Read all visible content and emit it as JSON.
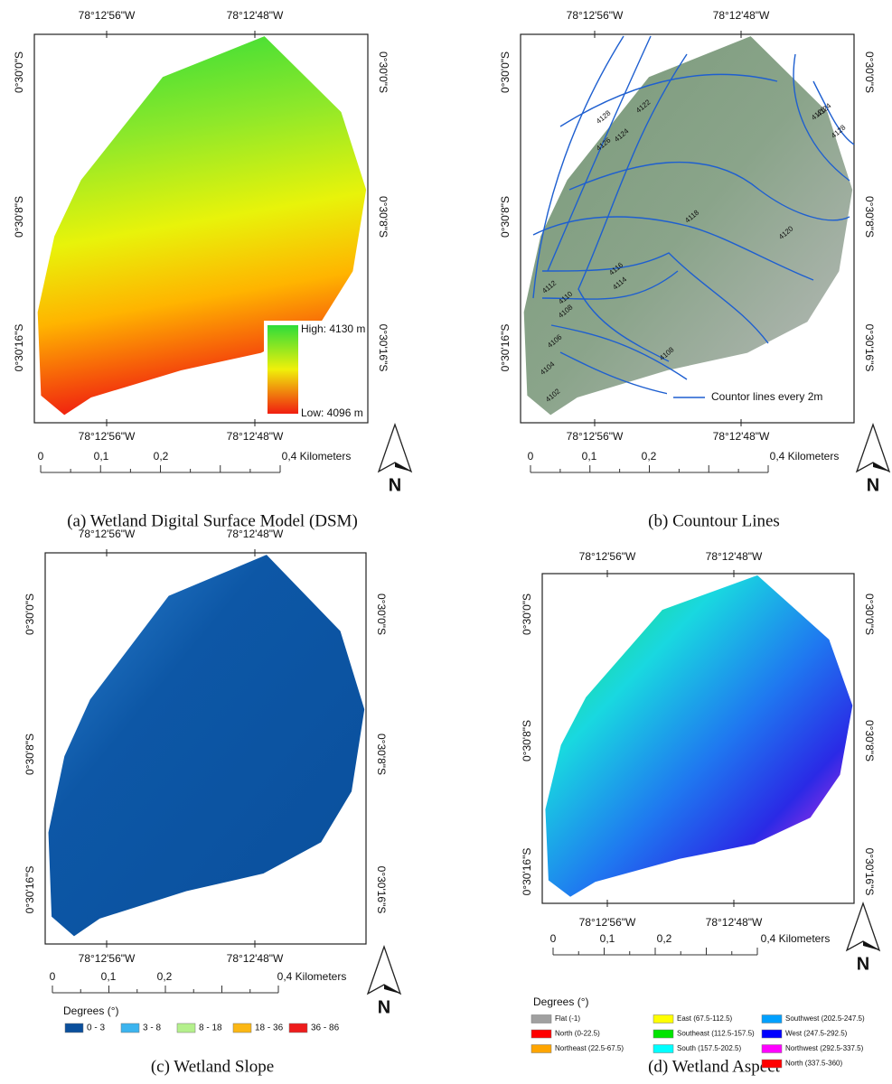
{
  "panels": [
    {
      "caption": "(a) Wetland Digital Surface Model (DSM)",
      "lon_labels": [
        "78°12'56\"W",
        "78°12'48\"W"
      ],
      "lat_labels": [
        "0°30'0\"S",
        "0°30'8\"S",
        "0°30'16\"S"
      ],
      "scale_labels": [
        "0",
        "0,1",
        "0,2",
        "0,4 Kilometers"
      ],
      "north": "N",
      "legend": {
        "high": "High: 4130 m",
        "low": "Low: 4096 m"
      }
    },
    {
      "caption": "(b) Countour Lines",
      "lon_labels": [
        "78°12'56\"W",
        "78°12'48\"W"
      ],
      "lat_labels": [
        "0°30'0\"S",
        "0°30'8\"S",
        "0°30'16\"S"
      ],
      "scale_labels": [
        "0",
        "0,1",
        "0,2",
        "0,4 Kilometers"
      ],
      "north": "N",
      "legend": {
        "line": "Countor lines every 2m"
      },
      "contour_labels": [
        "4128",
        "4126",
        "4124",
        "4122",
        "4124",
        "4126",
        "4128",
        "4118",
        "4120",
        "4116",
        "4114",
        "4112",
        "4110",
        "4108",
        "4106",
        "4104",
        "4102",
        "4108"
      ]
    },
    {
      "caption": "(c) Wetland Slope",
      "lon_labels": [
        "78°12'56\"W",
        "78°12'48\"W"
      ],
      "lat_labels": [
        "0°30'0\"S",
        "0°30'8\"S",
        "0°30'16\"S"
      ],
      "scale_labels": [
        "0",
        "0,1",
        "0,2",
        "0,4 Kilometers"
      ],
      "north": "N",
      "legend": {
        "title": "Degrees (°)",
        "items": [
          {
            "label": "0 - 3",
            "color": "#0a4f9c"
          },
          {
            "label": "3 - 8",
            "color": "#3cb4ef"
          },
          {
            "label": "8 - 18",
            "color": "#b4f08c"
          },
          {
            "label": "18 - 36",
            "color": "#fbb714"
          },
          {
            "label": "36 - 86",
            "color": "#ee1c1c"
          }
        ]
      }
    },
    {
      "caption": "(d) Wetland Aspect",
      "lon_labels": [
        "78°12'56\"W",
        "78°12'48\"W"
      ],
      "lat_labels": [
        "0°30'0\"S",
        "0°30'8\"S",
        "0°30'16\"S"
      ],
      "scale_labels": [
        "0",
        "0,1",
        "0,2",
        "0,4 Kilometers"
      ],
      "north": "N",
      "legend": {
        "title": "Degrees (°)",
        "items": [
          {
            "label": "Flat (-1)",
            "color": "#a0a0a0"
          },
          {
            "label": "North (0-22.5)",
            "color": "#ff0000"
          },
          {
            "label": "Northeast (22.5-67.5)",
            "color": "#ffa500"
          },
          {
            "label": "East (67.5-112.5)",
            "color": "#ffff00"
          },
          {
            "label": "Southeast (112.5-157.5)",
            "color": "#00e400"
          },
          {
            "label": "South (157.5-202.5)",
            "color": "#00ffff"
          },
          {
            "label": "Southwest (202.5-247.5)",
            "color": "#00a0ff"
          },
          {
            "label": "West (247.5-292.5)",
            "color": "#0000ff"
          },
          {
            "label": "Northwest (292.5-337.5)",
            "color": "#ff00ff"
          },
          {
            "label": "North (337.5-360)",
            "color": "#ff0000"
          }
        ]
      }
    }
  ]
}
